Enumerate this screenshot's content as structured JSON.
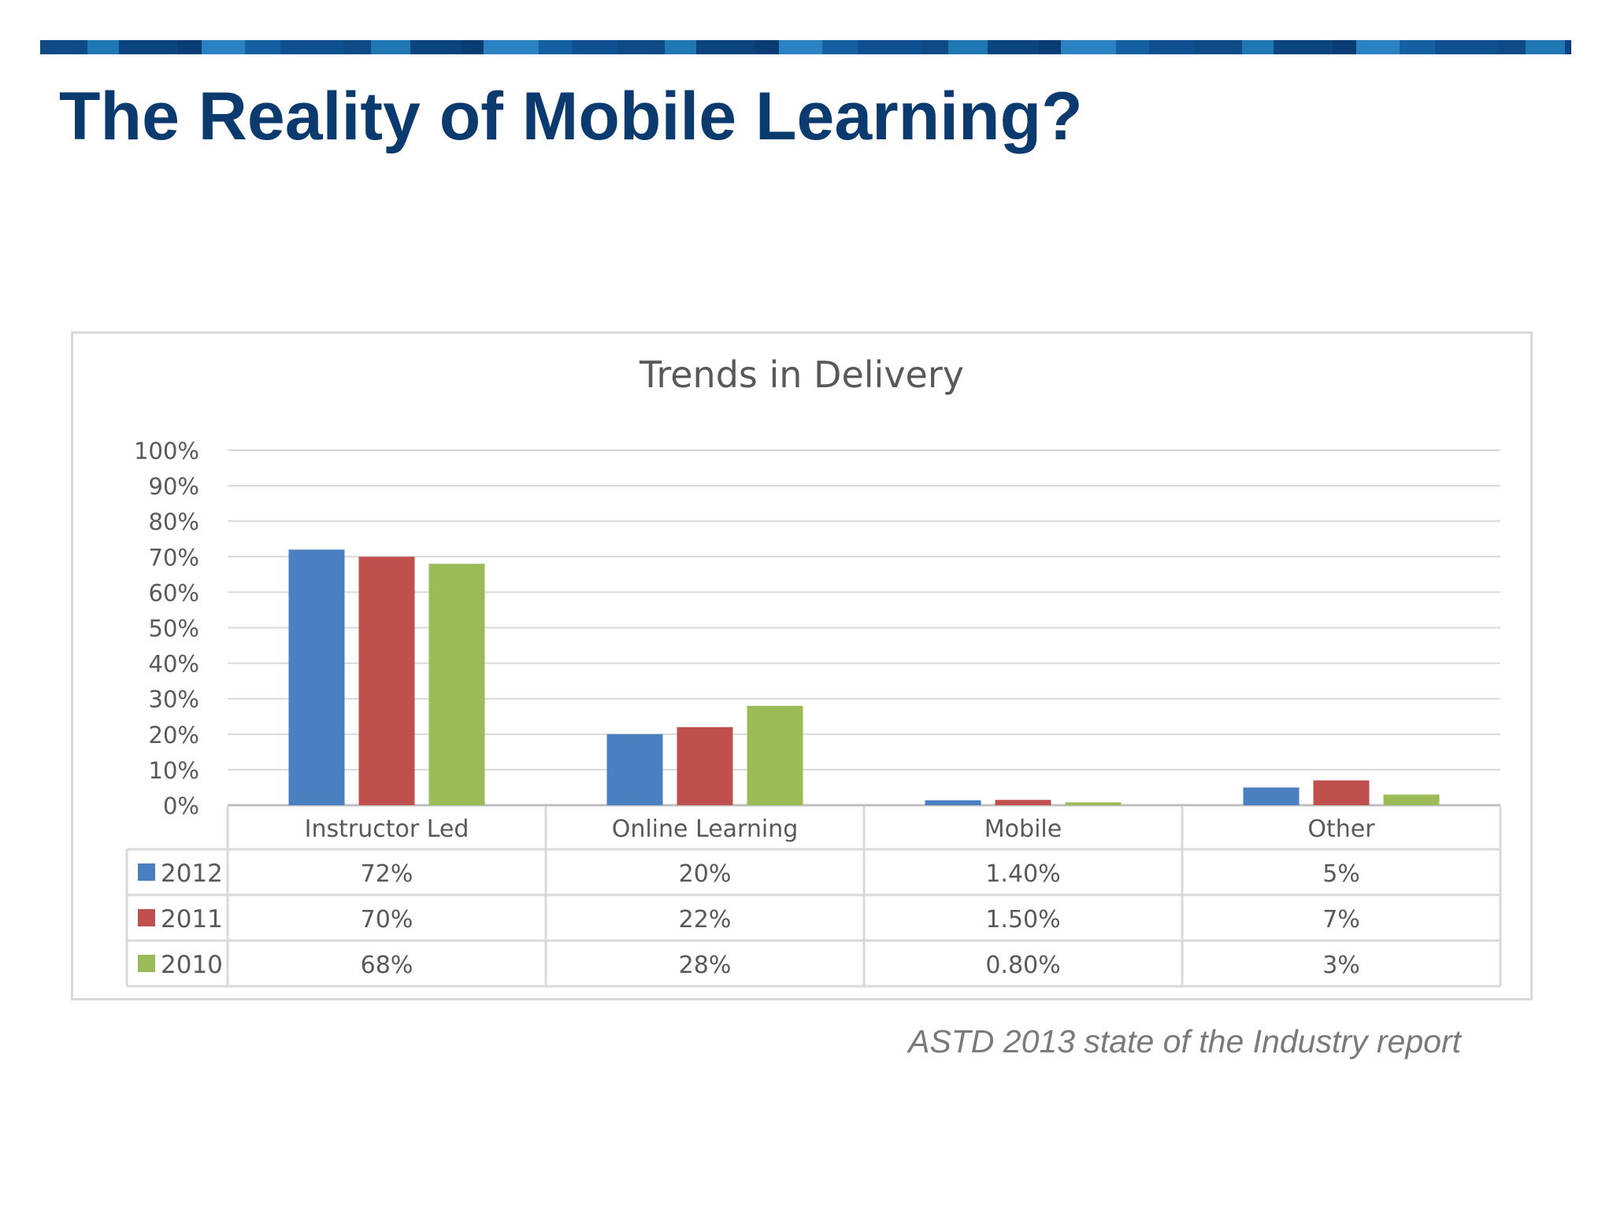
{
  "slide": {
    "title": "The Reality of Mobile Learning?",
    "source_note": "ASTD 2013 state of the Industry report"
  },
  "colors": {
    "title": "#0b3b6e",
    "top_bar": "#0e4a85",
    "series_2012": "#4a7fc1",
    "series_2011": "#c0504d",
    "series_2010": "#9bbb59"
  },
  "chart_data": {
    "type": "bar",
    "title": "Trends in Delivery",
    "categories": [
      "Instructor Led",
      "Online Learning",
      "Mobile",
      "Other"
    ],
    "series": [
      {
        "name": "2012",
        "values": [
          72,
          20,
          1.4,
          5
        ],
        "labels": [
          "72%",
          "20%",
          "1.40%",
          "5%"
        ],
        "color": "#4a7fc1"
      },
      {
        "name": "2011",
        "values": [
          70,
          22,
          1.5,
          7
        ],
        "labels": [
          "70%",
          "22%",
          "1.50%",
          "7%"
        ],
        "color": "#c0504d"
      },
      {
        "name": "2010",
        "values": [
          68,
          28,
          0.8,
          3
        ],
        "labels": [
          "68%",
          "28%",
          "0.80%",
          "3%"
        ],
        "color": "#9bbb59"
      }
    ],
    "y_ticks": [
      "0%",
      "10%",
      "20%",
      "30%",
      "40%",
      "50%",
      "60%",
      "70%",
      "80%",
      "90%",
      "100%"
    ],
    "ylim": [
      0,
      100
    ],
    "grid": true,
    "legend": "data table below chart"
  }
}
